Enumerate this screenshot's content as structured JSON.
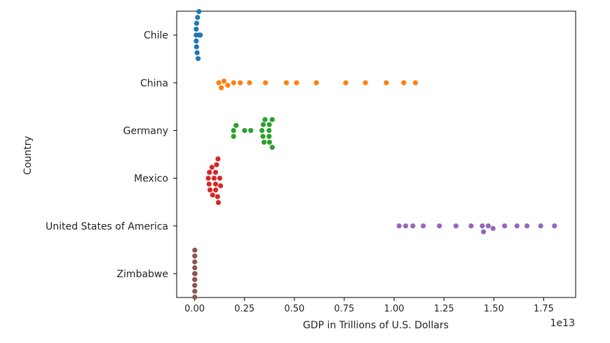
{
  "chart_data": {
    "type": "scatter",
    "subtype": "swarm",
    "title": "",
    "xlabel": "GDP in Trillions of U.S. Dollars",
    "ylabel": "Country",
    "x_offset_label": "1e13",
    "xlim": [
      -0.09,
      1.91
    ],
    "x_scale_exponent": 13,
    "x_ticks": [
      {
        "value": 0.0,
        "label": "0.00"
      },
      {
        "value": 0.25,
        "label": "0.25"
      },
      {
        "value": 0.5,
        "label": "0.50"
      },
      {
        "value": 0.75,
        "label": "0.75"
      },
      {
        "value": 1.0,
        "label": "1.00"
      },
      {
        "value": 1.25,
        "label": "1.25"
      },
      {
        "value": 1.5,
        "label": "1.50"
      },
      {
        "value": 1.75,
        "label": "1.75"
      }
    ],
    "categories": [
      "Chile",
      "China",
      "Germany",
      "Mexico",
      "United States of America",
      "Zimbabwe"
    ],
    "colors": [
      "#1f77b4",
      "#ff7f0e",
      "#2ca02c",
      "#d62728",
      "#9467bd",
      "#8c564b"
    ],
    "series": [
      {
        "name": "Chile",
        "values": [
          0.0078,
          0.0079,
          0.0077,
          0.0095,
          0.01,
          0.0124,
          0.015,
          0.0173,
          0.0214,
          0.0258,
          0.0285,
          0.0252,
          0.027,
          0.025,
          0.0238,
          0.023
        ]
      },
      {
        "name": "China",
        "values": [
          0.1211,
          0.1339,
          0.1471,
          0.166,
          0.1955,
          0.2286,
          0.2752,
          0.3552,
          0.4598,
          0.511,
          0.61,
          0.7573,
          0.8561,
          0.9607,
          1.0482,
          1.1065
        ]
      },
      {
        "name": "Germany",
        "values": [
          0.195,
          0.195,
          0.2079,
          0.2505,
          0.2815,
          0.344,
          0.3752,
          0.3479,
          0.373,
          0.389,
          0.3426,
          0.3744,
          0.3528,
          0.3733,
          0.389,
          0.3375
        ]
      },
      {
        "name": "Mexico",
        "values": [
          0.0684,
          0.0724,
          0.0741,
          0.0772,
          0.0866,
          0.0977,
          0.1056,
          0.105,
          0.11,
          0.09,
          0.105,
          0.117,
          0.119,
          0.126,
          0.13,
          0.115
        ]
      },
      {
        "name": "United States of America",
        "values": [
          1.025,
          1.058,
          1.094,
          1.146,
          1.227,
          1.31,
          1.386,
          1.448,
          1.472,
          1.442,
          1.496,
          1.554,
          1.616,
          1.666,
          1.735,
          1.804
        ]
      },
      {
        "name": "Zimbabwe",
        "values": [
          0.0007,
          0.0007,
          0.0007,
          0.0006,
          0.0006,
          0.0006,
          0.0005,
          0.0005,
          0.0004,
          0.0004,
          0.0007,
          0.001,
          0.0012,
          0.0014,
          0.0014,
          0.0015
        ]
      }
    ]
  }
}
